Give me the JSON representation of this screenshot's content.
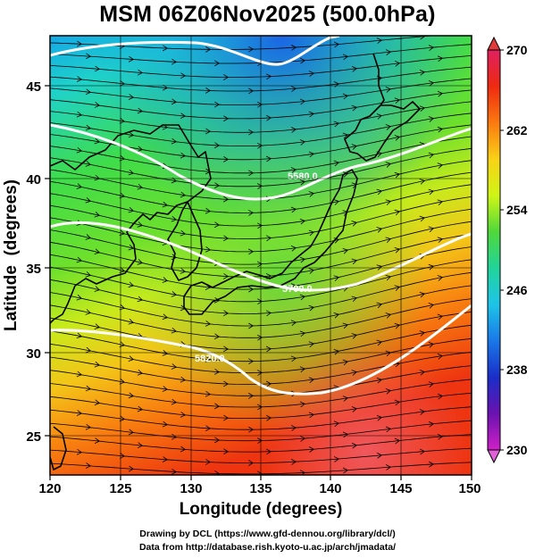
{
  "title": "MSM 06Z06Nov2025 (500.0hPa)",
  "map": {
    "xlabel": "Longitude (degrees)",
    "ylabel": "Latitude  (degrees)",
    "xlim": [
      120,
      150
    ],
    "ylim": [
      22.5,
      47.5
    ],
    "xticks": [
      "120",
      "125",
      "130",
      "135",
      "140",
      "145",
      "150"
    ],
    "yticks": [
      "25",
      "30",
      "35",
      "40",
      "45"
    ],
    "grid": true,
    "contour_labels": [
      "5580.0",
      "5700.0",
      "5820.0"
    ],
    "contour_color": "#ffffff",
    "streamline_color": "#000000",
    "coastline_color": "#000000"
  },
  "colorbar": {
    "min": 230,
    "max": 270,
    "labels": [
      "270",
      "262",
      "254",
      "246",
      "238",
      "230"
    ],
    "colors": [
      "#e02060",
      "#ee2a10",
      "#fb7a10",
      "#f9d217",
      "#cff516",
      "#4fd83b",
      "#22d49a",
      "#1ec4e8",
      "#1a78e8",
      "#1a2ec8",
      "#6a12b0",
      "#d020c8"
    ]
  },
  "credits": [
    "Drawing by DCL (https://www.gfd-dennou.org/library/dcl/)",
    "Data from http://database.rish.kyoto-u.ac.jp/arch/jmadata/"
  ]
}
